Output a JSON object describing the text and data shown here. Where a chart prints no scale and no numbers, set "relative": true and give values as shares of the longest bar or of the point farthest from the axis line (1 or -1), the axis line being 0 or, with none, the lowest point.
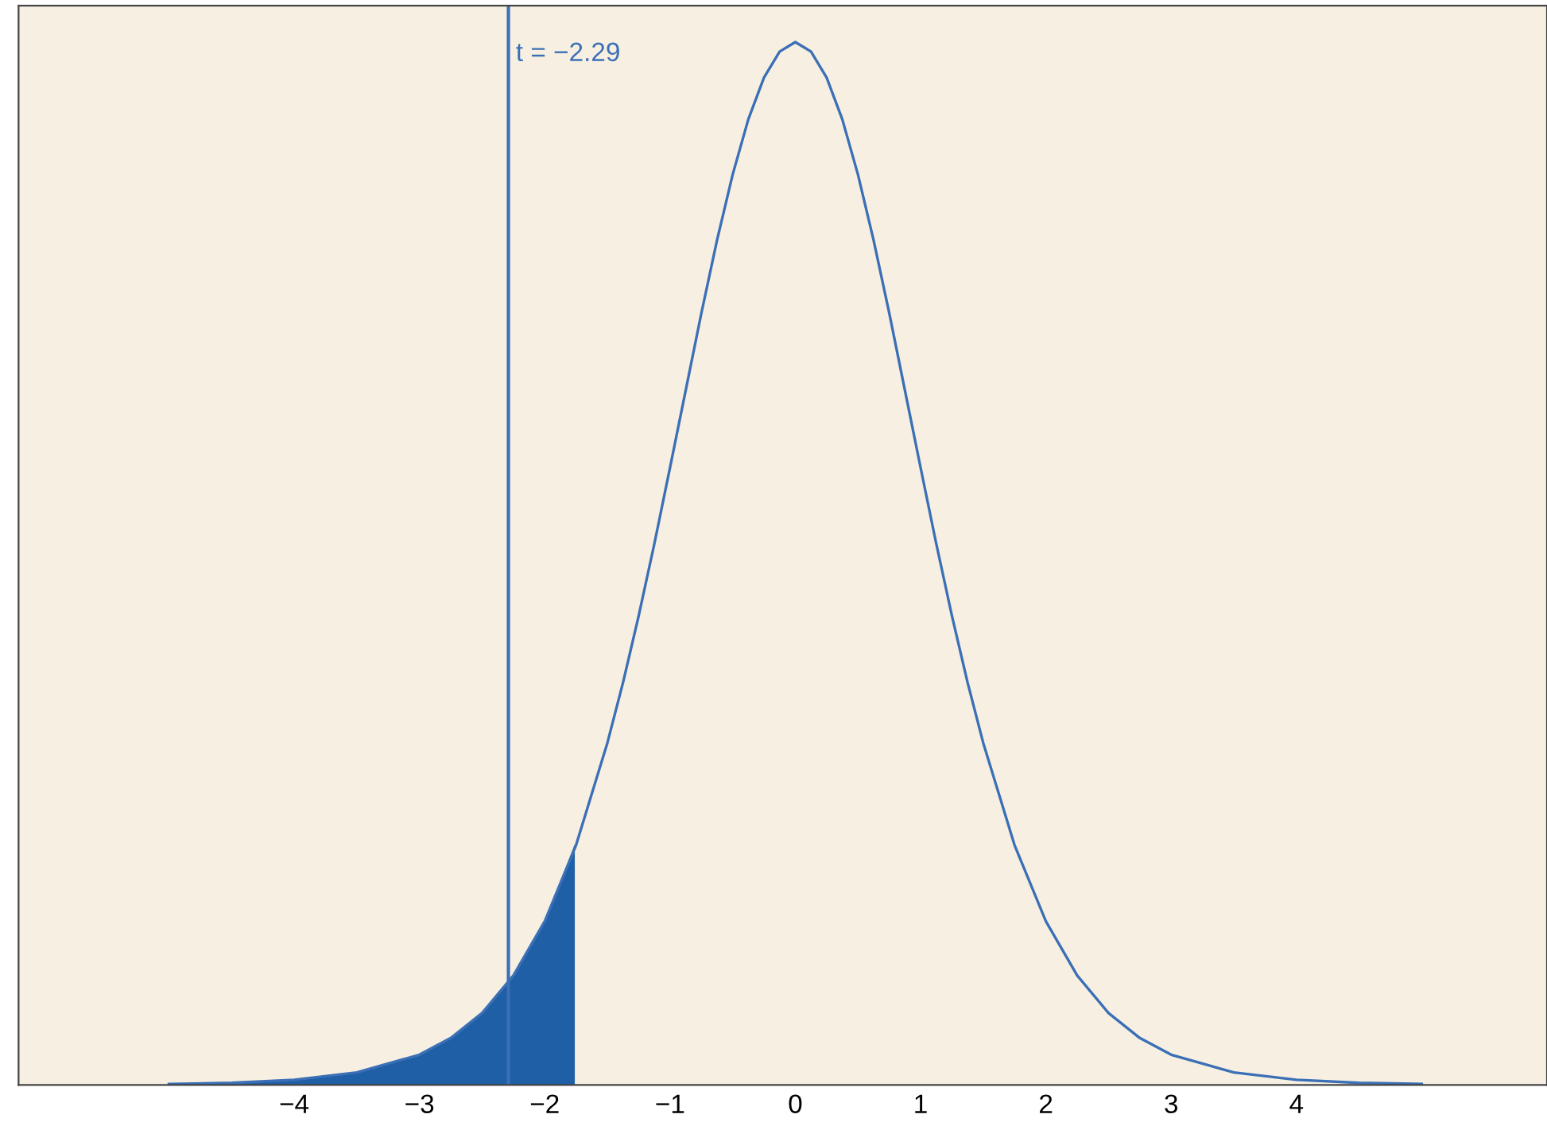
{
  "chart_data": {
    "type": "line",
    "relative": true,
    "xlim": [
      -6.2,
      6.0
    ],
    "xticks": [
      {
        "value": -4,
        "label": "−4"
      },
      {
        "value": -3,
        "label": "−3"
      },
      {
        "value": -2,
        "label": "−2"
      },
      {
        "value": -1,
        "label": "−1"
      },
      0,
      1,
      2,
      3,
      4
    ],
    "series": [
      {
        "type": "area",
        "color": "#1f5fa5",
        "x": [
          -5,
          -4.5,
          -4,
          -3.5,
          -3,
          -2.75,
          -2.5,
          -2.25,
          -2,
          -1.76
        ],
        "values": [
          0.001,
          0.002,
          0.005,
          0.012,
          0.029,
          0.045,
          0.069,
          0.105,
          0.157,
          0.231
        ]
      },
      {
        "color": "#3b6fb6",
        "x": [
          -5,
          -4.5,
          -4,
          -3.5,
          -3,
          -2.75,
          -2.5,
          -2.25,
          -2,
          -1.75,
          -1.5,
          -1.375,
          -1.25,
          -1.125,
          -1,
          -0.875,
          -0.75,
          -0.625,
          -0.5,
          -0.375,
          -0.25,
          -0.125,
          0,
          0.125,
          0.25,
          0.375,
          0.5,
          0.625,
          0.75,
          0.875,
          1,
          1.125,
          1.25,
          1.375,
          1.5,
          1.75,
          2,
          2.25,
          2.5,
          2.75,
          3,
          3.5,
          4,
          4.5,
          5
        ],
        "values": [
          0.001,
          0.002,
          0.005,
          0.012,
          0.029,
          0.045,
          0.069,
          0.105,
          0.157,
          0.23,
          0.328,
          0.386,
          0.45,
          0.519,
          0.592,
          0.666,
          0.74,
          0.81,
          0.873,
          0.926,
          0.966,
          0.991,
          1,
          0.991,
          0.966,
          0.926,
          0.873,
          0.81,
          0.74,
          0.666,
          0.592,
          0.519,
          0.45,
          0.386,
          0.328,
          0.23,
          0.157,
          0.105,
          0.069,
          0.045,
          0.029,
          0.012,
          0.005,
          0.002,
          0.001
        ]
      }
    ],
    "ref_lines": [
      {
        "axis": "x",
        "value": -2.29,
        "label": "t = −2.29",
        "color": "#3b6fb6"
      }
    ],
    "grid": false,
    "legend": false
  }
}
